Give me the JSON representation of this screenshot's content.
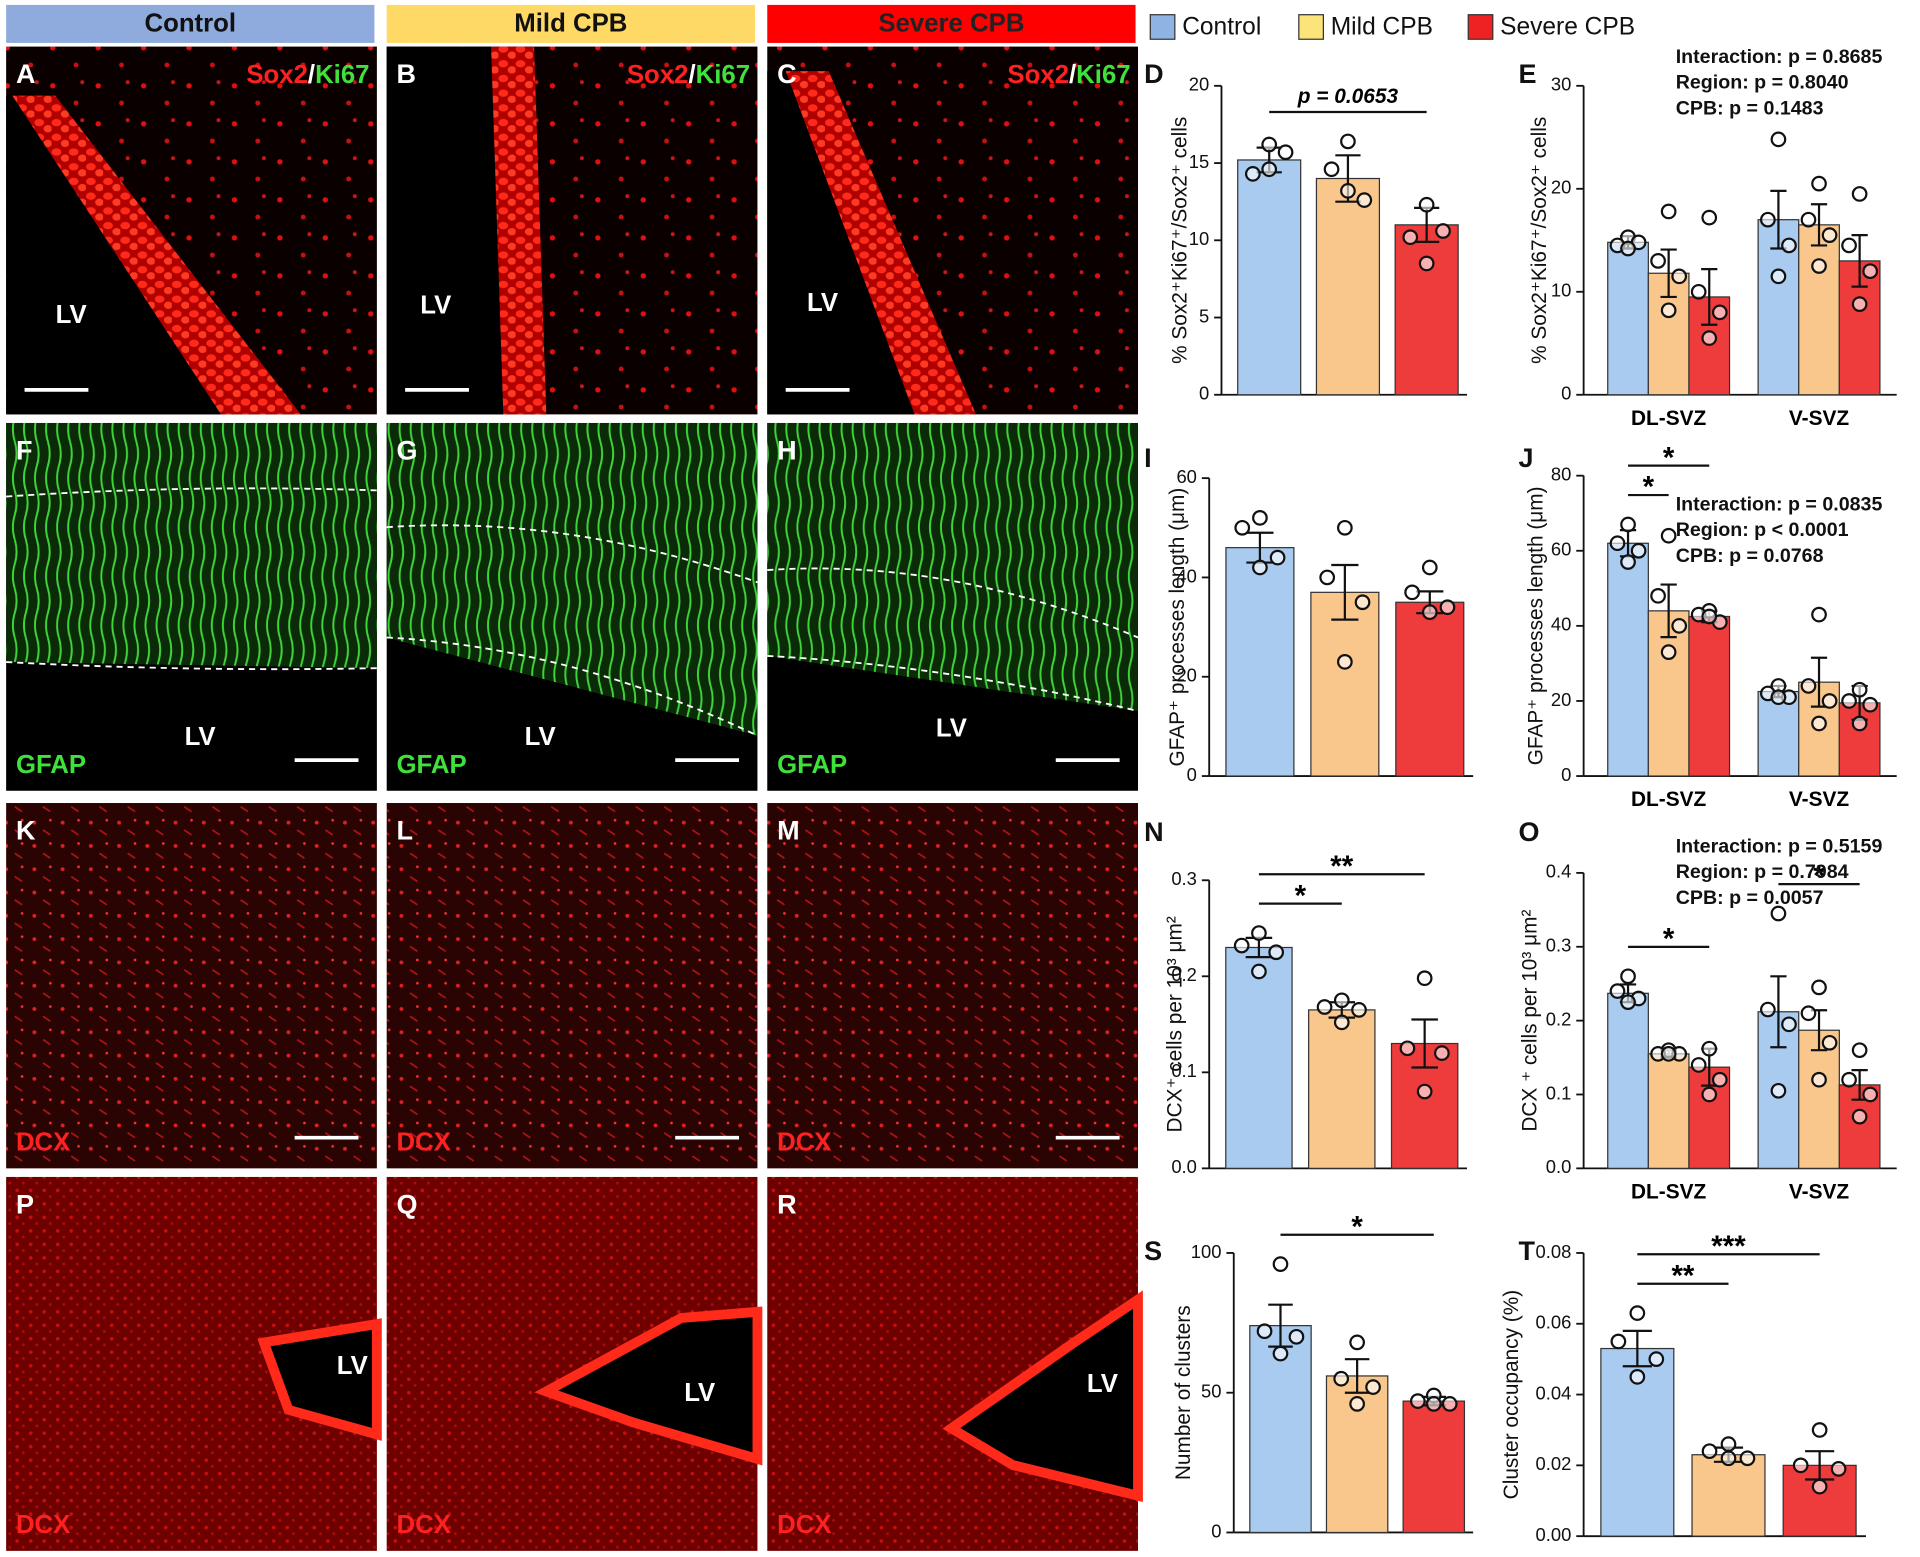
{
  "column_headers": [
    {
      "text": "Control",
      "color": "#8faadc"
    },
    {
      "text": "Mild CPB",
      "color": "#ffd966"
    },
    {
      "text": "Severe CPB",
      "color": "#ff0000"
    }
  ],
  "legend": [
    {
      "name": "Control",
      "color": "#8fb4e3"
    },
    {
      "name": "Mild CPB",
      "color": "#fde47a"
    },
    {
      "name": "Severe CPB",
      "color": "#ee2222"
    }
  ],
  "image_panels": [
    {
      "letter": "A",
      "stain": [
        "Sox2",
        "/",
        "Ki67"
      ],
      "region": "LV"
    },
    {
      "letter": "B",
      "stain": [
        "Sox2",
        "/",
        "Ki67"
      ],
      "region": "LV"
    },
    {
      "letter": "C",
      "stain": [
        "Sox2",
        "/",
        "Ki67"
      ],
      "region": "LV"
    },
    {
      "letter": "F",
      "stain": [
        "GFAP"
      ],
      "region": "LV"
    },
    {
      "letter": "G",
      "stain": [
        "GFAP"
      ],
      "region": "LV"
    },
    {
      "letter": "H",
      "stain": [
        "GFAP"
      ],
      "region": "LV"
    },
    {
      "letter": "K",
      "stain": [
        "DCX"
      ]
    },
    {
      "letter": "L",
      "stain": [
        "DCX"
      ]
    },
    {
      "letter": "M",
      "stain": [
        "DCX"
      ]
    },
    {
      "letter": "P",
      "stain": [
        "DCX"
      ],
      "region": "LV"
    },
    {
      "letter": "Q",
      "stain": [
        "DCX"
      ],
      "region": "LV"
    },
    {
      "letter": "R",
      "stain": [
        "DCX"
      ],
      "region": "LV"
    }
  ],
  "chart_data": [
    {
      "type": "bar",
      "panel": "D",
      "y_label": "% Sox2⁺Ki67⁺/Sox2⁺ cells",
      "ylim": [
        0,
        20
      ],
      "yticks": [
        0,
        5,
        10,
        15,
        20
      ],
      "categories": [
        null
      ],
      "series": [
        {
          "color": "#a9cbf0",
          "values": [
            15.2
          ],
          "errors": [
            0.8
          ],
          "points": [
            [
              16.2,
              14.3,
              15.7,
              14.6
            ]
          ]
        },
        {
          "color": "#f9c68c",
          "values": [
            14
          ],
          "errors": [
            1.5
          ],
          "points": [
            [
              16.4,
              14.6,
              12.6,
              13.2
            ]
          ]
        },
        {
          "color": "#ee3b3b",
          "values": [
            11
          ],
          "errors": [
            1.1
          ],
          "points": [
            [
              12.3,
              10.2,
              10.6,
              8.5
            ]
          ]
        }
      ],
      "significance": [
        {
          "label": "p = 0.0653",
          "series": [
            0,
            2
          ],
          "category": 0
        }
      ]
    },
    {
      "type": "bar",
      "panel": "E",
      "y_label": "% Sox2⁺Ki67⁺/Sox2⁺ cells",
      "ylim": [
        0,
        30
      ],
      "yticks": [
        0,
        10,
        20,
        30
      ],
      "categories": [
        "DL-SVZ",
        "V-SVZ"
      ],
      "series": [
        {
          "color": "#a9cbf0",
          "values": [
            14.8,
            17
          ],
          "errors": [
            0.6,
            2.8
          ],
          "points": [
            [
              15.3,
              14.5,
              14.8,
              14.2
            ],
            [
              24.8,
              17,
              14.5,
              11.5
            ]
          ]
        },
        {
          "color": "#f9c68c",
          "values": [
            11.8,
            16.5
          ],
          "errors": [
            2.3,
            2
          ],
          "points": [
            [
              17.8,
              13,
              11.5,
              8.2
            ],
            [
              20.5,
              17,
              15.5,
              12.5
            ]
          ]
        },
        {
          "color": "#ee3b3b",
          "values": [
            9.5,
            13
          ],
          "errors": [
            2.7,
            2.5
          ],
          "points": [
            [
              17.2,
              10,
              8,
              5.5
            ],
            [
              19.5,
              14.5,
              12,
              8.8
            ]
          ]
        }
      ],
      "annotations": [
        "Interaction: p = 0.8685",
        "Region: p = 0.8040",
        "CPB: p = 0.1483"
      ]
    },
    {
      "type": "bar",
      "panel": "I",
      "y_label": "GFAP⁺ processes length (μm)",
      "ylim": [
        0,
        60
      ],
      "yticks": [
        0,
        20,
        40,
        60
      ],
      "categories": [
        null
      ],
      "series": [
        {
          "color": "#a9cbf0",
          "values": [
            46
          ],
          "errors": [
            3
          ],
          "points": [
            [
              52,
              50,
              44,
              42
            ]
          ]
        },
        {
          "color": "#f9c68c",
          "values": [
            37
          ],
          "errors": [
            5.5
          ],
          "points": [
            [
              50,
              40,
              35,
              23
            ]
          ]
        },
        {
          "color": "#ee3b3b",
          "values": [
            35
          ],
          "errors": [
            2.2
          ],
          "points": [
            [
              42,
              37,
              34,
              33
            ]
          ]
        }
      ]
    },
    {
      "type": "bar",
      "panel": "J",
      "y_label": "GFAP⁺ processes length (μm)",
      "ylim": [
        0,
        80
      ],
      "yticks": [
        0,
        20,
        40,
        60,
        80
      ],
      "categories": [
        "DL-SVZ",
        "V-SVZ"
      ],
      "series": [
        {
          "color": "#a9cbf0",
          "values": [
            62,
            22.5
          ],
          "errors": [
            3.5,
            1.5
          ],
          "points": [
            [
              67,
              62,
              60,
              57
            ],
            [
              24,
              22,
              21,
              21
            ]
          ]
        },
        {
          "color": "#f9c68c",
          "values": [
            44,
            25
          ],
          "errors": [
            7,
            6.5
          ],
          "points": [
            [
              64,
              48,
              40,
              33
            ],
            [
              43,
              24,
              20,
              14
            ]
          ]
        },
        {
          "color": "#ee3b3b",
          "values": [
            42.5,
            19.5
          ],
          "errors": [
            1.5,
            4.5
          ],
          "points": [
            [
              44,
              43,
              41,
              42.5
            ],
            [
              23,
              20,
              19,
              14
            ]
          ]
        }
      ],
      "annotations": [
        "Interaction: p = 0.0835",
        "Region: p < 0.0001",
        "CPB: p = 0.0768"
      ],
      "significance": [
        {
          "label": "*",
          "series": [
            0,
            1
          ],
          "category": 0
        },
        {
          "label": "*",
          "series": [
            0,
            2
          ],
          "category": 0
        }
      ]
    },
    {
      "type": "bar",
      "panel": "N",
      "y_label": "DCX⁺ cells per 10³ μm²",
      "ylim": [
        0,
        0.3
      ],
      "yticks": [
        {
          "value": 0,
          "label": "0.0"
        },
        0.1,
        0.2,
        0.3
      ],
      "categories": [
        null
      ],
      "series": [
        {
          "color": "#a9cbf0",
          "values": [
            0.23
          ],
          "errors": [
            0.01
          ],
          "points": [
            [
              0.245,
              0.232,
              0.225,
              0.205
            ]
          ]
        },
        {
          "color": "#f9c68c",
          "values": [
            0.165
          ],
          "errors": [
            0.008
          ],
          "points": [
            [
              0.175,
              0.168,
              0.165,
              0.152
            ]
          ]
        },
        {
          "color": "#ee3b3b",
          "values": [
            0.13
          ],
          "errors": [
            0.025
          ],
          "points": [
            [
              0.198,
              0.125,
              0.12,
              0.08
            ]
          ]
        }
      ],
      "significance": [
        {
          "label": "*",
          "series": [
            0,
            1
          ],
          "category": 0
        },
        {
          "label": "**",
          "series": [
            0,
            2
          ],
          "category": 0
        }
      ]
    },
    {
      "type": "bar",
      "panel": "O",
      "y_label": "DCX ⁺ cells per 10³ μm²",
      "ylim": [
        0,
        0.4
      ],
      "yticks": [
        {
          "value": 0,
          "label": "0.0"
        },
        0.1,
        0.2,
        0.3,
        0.4
      ],
      "categories": [
        "DL-SVZ",
        "V-SVZ"
      ],
      "series": [
        {
          "color": "#a9cbf0",
          "values": [
            0.237,
            0.212
          ],
          "errors": [
            0.012,
            0.048
          ],
          "points": [
            [
              0.26,
              0.24,
              0.23,
              0.225
            ],
            [
              0.345,
              0.215,
              0.195,
              0.105
            ]
          ]
        },
        {
          "color": "#f9c68c",
          "values": [
            0.155,
            0.187
          ],
          "errors": [
            0.005,
            0.027
          ],
          "points": [
            [
              0.16,
              0.155,
              0.155,
              0.155
            ],
            [
              0.245,
              0.21,
              0.17,
              0.12
            ]
          ]
        },
        {
          "color": "#ee3b3b",
          "values": [
            0.137,
            0.113
          ],
          "errors": [
            0.025,
            0.02
          ],
          "points": [
            [
              0.162,
              0.14,
              0.12,
              0.1
            ],
            [
              0.16,
              0.12,
              0.1,
              0.07
            ]
          ]
        }
      ],
      "annotations": [
        "Interaction: p = 0.5159",
        "Region: p = 0.7984",
        "CPB: p = 0.0057"
      ],
      "significance": [
        {
          "label": "*",
          "series": [
            0,
            2
          ],
          "category": 0
        },
        {
          "label": "*",
          "series": [
            0,
            2
          ],
          "category": 1
        }
      ]
    },
    {
      "type": "bar",
      "panel": "S",
      "y_label": "Number of clusters",
      "ylim": [
        0,
        100
      ],
      "yticks": [
        0,
        50,
        100
      ],
      "categories": [
        null
      ],
      "series": [
        {
          "color": "#a9cbf0",
          "values": [
            74
          ],
          "errors": [
            7.5
          ],
          "points": [
            [
              96,
              72,
              70,
              64
            ]
          ]
        },
        {
          "color": "#f9c68c",
          "values": [
            56
          ],
          "errors": [
            6
          ],
          "points": [
            [
              68,
              55,
              52,
              46
            ]
          ]
        },
        {
          "color": "#ee3b3b",
          "values": [
            47
          ],
          "errors": [
            1.5
          ],
          "points": [
            [
              49,
              47,
              46,
              46
            ]
          ]
        }
      ],
      "significance": [
        {
          "label": "*",
          "series": [
            0,
            2
          ],
          "category": 0
        }
      ]
    },
    {
      "type": "bar",
      "panel": "T",
      "y_label": "Cluster occupancy (%)",
      "ylim": [
        0,
        0.08
      ],
      "yticks": [
        {
          "value": 0,
          "label": "0.00"
        },
        0.02,
        0.04,
        0.06,
        0.08
      ],
      "categories": [
        null
      ],
      "series": [
        {
          "color": "#a9cbf0",
          "values": [
            0.053
          ],
          "errors": [
            0.005
          ],
          "points": [
            [
              0.063,
              0.055,
              0.05,
              0.045
            ]
          ]
        },
        {
          "color": "#f9c68c",
          "values": [
            0.023
          ],
          "errors": [
            0.002
          ],
          "points": [
            [
              0.026,
              0.024,
              0.022,
              0.022
            ]
          ]
        },
        {
          "color": "#ee3b3b",
          "values": [
            0.02
          ],
          "errors": [
            0.004
          ],
          "points": [
            [
              0.03,
              0.02,
              0.019,
              0.014
            ]
          ]
        }
      ],
      "significance": [
        {
          "label": "**",
          "series": [
            0,
            1
          ],
          "category": 0
        },
        {
          "label": "***",
          "series": [
            0,
            2
          ],
          "category": 0
        }
      ]
    }
  ]
}
